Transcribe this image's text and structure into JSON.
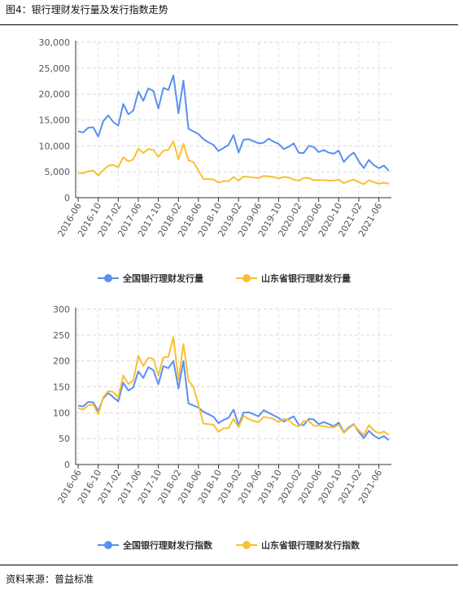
{
  "figure_title": "图4：银行理财发行量及发行指数走势",
  "source_text": "资料来源：普益标准",
  "colors": {
    "national": "#5B8FF0",
    "shandong": "#F9C02E"
  },
  "chart_data": [
    {
      "type": "line",
      "title": "",
      "ylim": [
        0,
        30000
      ],
      "yticks": [
        "0",
        "5,000",
        "10,000",
        "15,000",
        "20,000",
        "25,000",
        "30,000"
      ],
      "ytick_values": [
        0,
        5000,
        10000,
        15000,
        20000,
        25000,
        30000
      ],
      "xtick_labels": [
        "2016-06",
        "2016-10",
        "2017-02",
        "2017-06",
        "2017-10",
        "2018-02",
        "2018-06",
        "2018-10",
        "2019-02",
        "2019-06",
        "2019-10",
        "2020-02",
        "2020-06",
        "2020-10",
        "2021-02",
        "2021-06"
      ],
      "grid": true,
      "legend": "bottom",
      "series": [
        {
          "name": "全国银行理财发行量",
          "values": [
            12800,
            12600,
            13500,
            13600,
            11800,
            14800,
            15900,
            14600,
            13900,
            18100,
            16100,
            16800,
            20500,
            18700,
            21100,
            20600,
            17200,
            21200,
            20800,
            23600,
            16300,
            22600,
            13300,
            12800,
            12300,
            11300,
            10700,
            10200,
            9000,
            9600,
            10200,
            12100,
            8700,
            11200,
            11300,
            10900,
            10500,
            10600,
            11400,
            10800,
            10400,
            9400,
            9800,
            10500,
            8700,
            8600,
            10000,
            9800,
            8800,
            9200,
            8700,
            8500,
            9100,
            6900,
            8000,
            8700,
            7000,
            5700,
            7300,
            6300,
            5700,
            6200,
            5200
          ]
        },
        {
          "name": "山东省银行理财发行量",
          "values": [
            4800,
            4700,
            5100,
            5200,
            4300,
            5300,
            6200,
            6300,
            5900,
            7800,
            7000,
            7400,
            9500,
            8600,
            9400,
            9200,
            7900,
            9100,
            9200,
            10900,
            7400,
            10400,
            7200,
            6900,
            5200,
            3600,
            3600,
            3500,
            2900,
            3200,
            3200,
            4000,
            3300,
            4100,
            4000,
            3900,
            3800,
            4200,
            4100,
            4000,
            3700,
            4000,
            3900,
            3500,
            3300,
            3800,
            3800,
            3400,
            3400,
            3400,
            3300,
            3300,
            3500,
            2800,
            3200,
            3500,
            3000,
            2600,
            3400,
            3000,
            2700,
            2900,
            2700
          ]
        }
      ]
    },
    {
      "type": "line",
      "title": "",
      "ylim": [
        0,
        300
      ],
      "yticks": [
        "0",
        "50",
        "100",
        "150",
        "200",
        "250",
        "300"
      ],
      "ytick_values": [
        0,
        50,
        100,
        150,
        200,
        250,
        300
      ],
      "xtick_labels": [
        "2016-06",
        "2016-10",
        "2017-02",
        "2017-06",
        "2017-10",
        "2018-02",
        "2018-06",
        "2018-10",
        "2019-02",
        "2019-06",
        "2019-10",
        "2020-02",
        "2020-06",
        "2020-10",
        "2021-02",
        "2021-06"
      ],
      "grid": true,
      "legend": "bottom",
      "series": [
        {
          "name": "全国银行理财发行指数",
          "values": [
            114,
            112,
            121,
            120,
            103,
            128,
            138,
            130,
            122,
            158,
            143,
            149,
            180,
            167,
            188,
            182,
            155,
            190,
            186,
            200,
            147,
            200,
            118,
            114,
            110,
            102,
            97,
            92,
            80,
            86,
            90,
            106,
            76,
            100,
            101,
            97,
            93,
            105,
            100,
            95,
            90,
            83,
            88,
            93,
            77,
            76,
            88,
            87,
            78,
            82,
            78,
            74,
            81,
            62,
            72,
            78,
            63,
            51,
            65,
            56,
            50,
            55,
            47
          ]
        },
        {
          "name": "山东省银行理财发行指数",
          "values": [
            109,
            106,
            114,
            116,
            97,
            130,
            142,
            140,
            130,
            172,
            155,
            162,
            210,
            190,
            206,
            204,
            172,
            207,
            208,
            246,
            163,
            233,
            162,
            150,
            115,
            79,
            78,
            77,
            63,
            70,
            70,
            88,
            72,
            94,
            88,
            84,
            82,
            92,
            90,
            88,
            82,
            88,
            86,
            77,
            73,
            84,
            84,
            75,
            75,
            74,
            72,
            72,
            77,
            61,
            70,
            77,
            66,
            57,
            76,
            66,
            60,
            64,
            57
          ]
        }
      ]
    }
  ]
}
